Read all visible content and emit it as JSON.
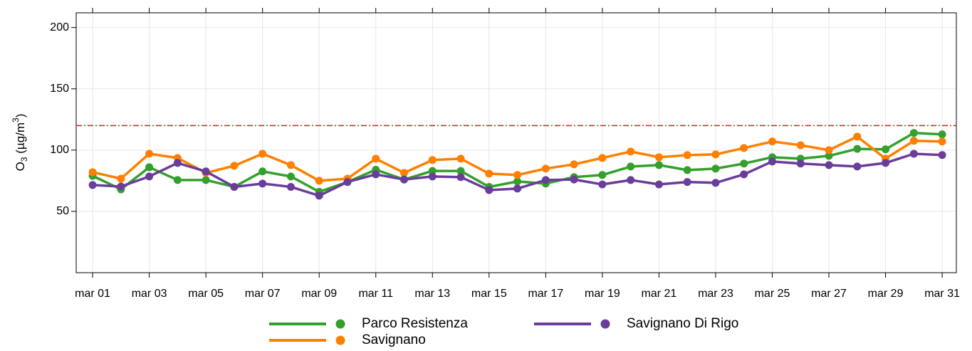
{
  "chart_data": {
    "type": "line",
    "y_label": [
      "O",
      "3",
      " (µg/m",
      "3",
      ")"
    ],
    "x": [
      1,
      2,
      3,
      4,
      5,
      6,
      7,
      8,
      9,
      10,
      11,
      12,
      13,
      14,
      15,
      16,
      17,
      18,
      19,
      20,
      21,
      22,
      23,
      24,
      25,
      26,
      27,
      28,
      29,
      30,
      31
    ],
    "xlim": [
      0.42,
      31.5
    ],
    "xticks": [
      {
        "value": 1,
        "label": "mar 01"
      },
      {
        "value": 3,
        "label": "mar 03"
      },
      {
        "value": 5,
        "label": "mar 05"
      },
      {
        "value": 7,
        "label": "mar 07"
      },
      {
        "value": 9,
        "label": "mar 09"
      },
      {
        "value": 11,
        "label": "mar 11"
      },
      {
        "value": 13,
        "label": "mar 13"
      },
      {
        "value": 15,
        "label": "mar 15"
      },
      {
        "value": 17,
        "label": "mar 17"
      },
      {
        "value": 19,
        "label": "mar 19"
      },
      {
        "value": 21,
        "label": "mar 21"
      },
      {
        "value": 23,
        "label": "mar 23"
      },
      {
        "value": 25,
        "label": "mar 25"
      },
      {
        "value": 27,
        "label": "mar 27"
      },
      {
        "value": 29,
        "label": "mar 29"
      },
      {
        "value": 31,
        "label": "mar 31"
      }
    ],
    "ylim": [
      0,
      212
    ],
    "yticks": [
      50,
      100,
      150,
      200
    ],
    "grid": true,
    "threshold": 120,
    "threshold_color": "#e41a1c",
    "legend": "bottom",
    "series": [
      {
        "name": "Parco Resistenza",
        "color": "#33a02c",
        "values": [
          79,
          68,
          86,
          75.6,
          75.6,
          70,
          82.6,
          78.5,
          66,
          74,
          84,
          76,
          83,
          83,
          70,
          74.4,
          72.7,
          78,
          79.7,
          86.6,
          87.8,
          83.7,
          84.9,
          89,
          94.2,
          93,
          95.3,
          101,
          100.6,
          114,
          112.8
        ]
      },
      {
        "name": "Savignano",
        "color": "#ff7f00",
        "values": [
          82,
          76.7,
          97,
          93.6,
          81.4,
          87.2,
          97,
          87.8,
          75,
          76.7,
          93,
          81.4,
          91.9,
          93,
          80.8,
          79.7,
          84.9,
          88.4,
          93.6,
          98.8,
          94.2,
          95.9,
          96.5,
          101.7,
          107,
          104,
          100,
          111,
          93,
          107.6,
          107
        ]
      },
      {
        "name": "Savignano Di Rigo",
        "color": "#6a3d9a",
        "values": [
          71.5,
          70.3,
          78.5,
          89.5,
          82.6,
          70,
          72.7,
          70,
          62.8,
          74,
          80.2,
          76,
          78.5,
          78,
          67.4,
          68.6,
          75.6,
          76,
          72,
          75.6,
          72,
          74,
          73.3,
          80.2,
          90.7,
          89,
          87.8,
          86.6,
          89.5,
          97,
          96
        ]
      }
    ]
  }
}
